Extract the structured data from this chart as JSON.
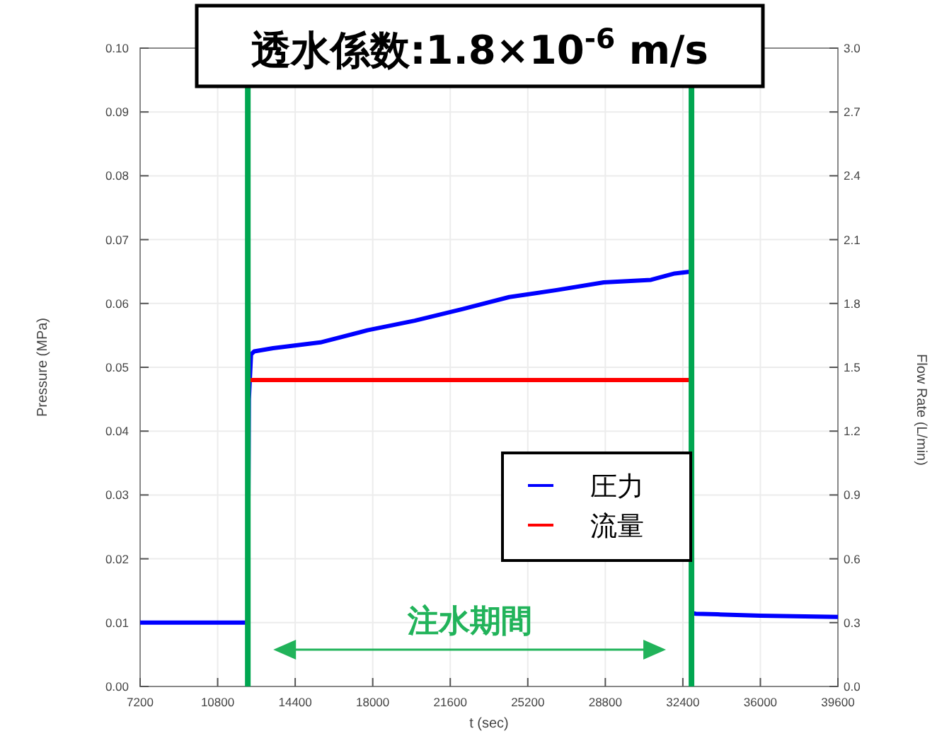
{
  "chart_data": {
    "type": "line",
    "title": "透水係数:1.8×10$^{-6}$ m/s",
    "xlabel": "t (sec)",
    "ylabel": "Pressure (MPa)",
    "y2label": "Flow Rate (L/min)",
    "annotations": [
      "注水期間"
    ],
    "xlim": [
      7200,
      39600
    ],
    "xticks": [
      7200,
      10800,
      14400,
      18000,
      21600,
      25200,
      28800,
      32400,
      36000,
      39600
    ],
    "ylim": [
      0,
      0.1
    ],
    "yticks": [
      {
        "value": 0,
        "label": "0.00"
      },
      0.01,
      0.02,
      0.03,
      0.04,
      0.05,
      0.06,
      0.07,
      0.08,
      0.09,
      {
        "value": 0.1,
        "label": "0.10"
      }
    ],
    "y2lim": [
      0,
      3
    ],
    "y2ticks": [
      {
        "value": 0,
        "label": "0.0"
      },
      0.3,
      0.6,
      0.9,
      1.2,
      1.5,
      1.8,
      2.1,
      2.4,
      2.7,
      {
        "value": 3,
        "label": "3.0"
      }
    ],
    "grid": true,
    "legend": "right",
    "series": [
      {
        "name": "圧力",
        "color": "#0000ff",
        "x": [
          7200,
          12200,
          12250,
          12350,
          12500,
          13370,
          15570,
          17760,
          19950,
          22150,
          24340,
          26540,
          28730,
          30920,
          32020,
          32780,
          32820,
          33000,
          34000,
          36000,
          39600
        ],
        "values": [
          0.01,
          0.01,
          0.045,
          0.052,
          0.0525,
          0.053,
          0.0539,
          0.0558,
          0.0573,
          0.0591,
          0.061,
          0.0621,
          0.0633,
          0.0637,
          0.0647,
          0.065,
          0.0115,
          0.0114,
          0.0113,
          0.0111,
          0.0109
        ]
      },
      {
        "name": "流量",
        "color": "#ff0000",
        "axis": "y2",
        "x": [
          12300,
          32800
        ],
        "values": [
          1.44,
          1.44
        ]
      }
    ],
    "ref_lines": [
      {
        "axis": "x",
        "value": 12200,
        "color": "#00a650"
      },
      {
        "axis": "x",
        "value": 32800,
        "color": "#00a650"
      }
    ]
  }
}
